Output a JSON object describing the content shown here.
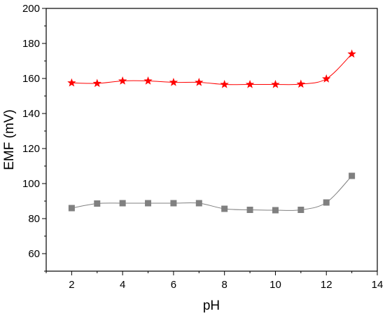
{
  "chart_data": {
    "type": "line",
    "title": "",
    "xlabel": "pH",
    "ylabel": "EMF (mV)",
    "xlim": [
      1,
      14
    ],
    "ylim": [
      50,
      200
    ],
    "xticks": [
      2,
      4,
      6,
      8,
      10,
      12,
      14
    ],
    "yticks": [
      60,
      80,
      100,
      120,
      140,
      160,
      180,
      200
    ],
    "grid": false,
    "legend": "none",
    "series": [
      {
        "marker": "star",
        "color": "#ff0000",
        "x": [
          2,
          3,
          4,
          5,
          6,
          7,
          8,
          9,
          10,
          11,
          12,
          13
        ],
        "y": [
          157.5,
          157.2,
          158.6,
          158.6,
          157.8,
          157.8,
          156.6,
          156.6,
          156.6,
          156.8,
          159.8,
          174.0
        ]
      },
      {
        "marker": "square",
        "color": "#808080",
        "x": [
          2,
          3,
          4,
          5,
          6,
          7,
          8,
          9,
          10,
          11,
          12,
          13
        ],
        "y": [
          86.0,
          88.6,
          88.8,
          88.8,
          88.8,
          88.8,
          85.6,
          85.0,
          84.8,
          85.0,
          89.2,
          104.4
        ]
      }
    ]
  }
}
